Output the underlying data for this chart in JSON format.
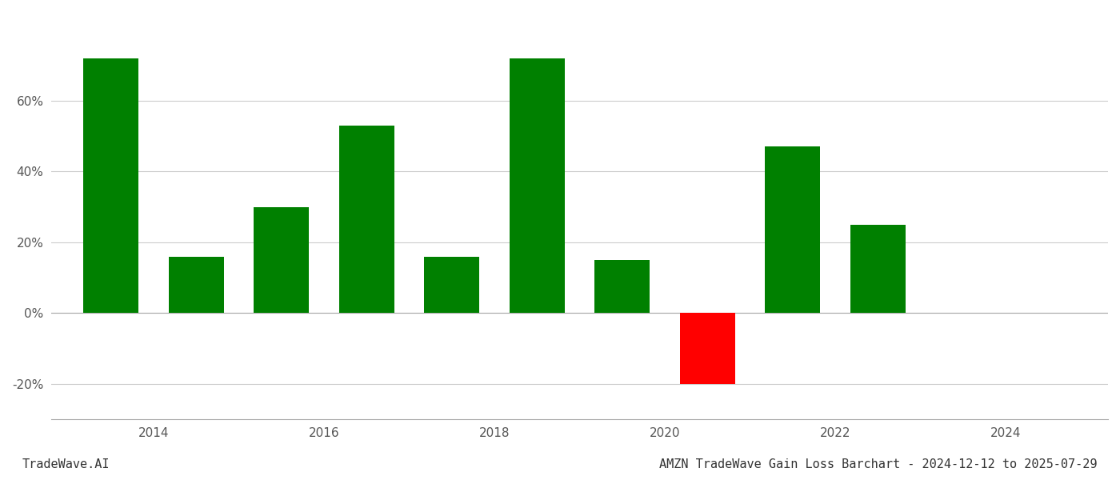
{
  "years": [
    2013.5,
    2014.5,
    2015.5,
    2016.5,
    2017.5,
    2018.5,
    2019.5,
    2020.5,
    2021.5,
    2022.5
  ],
  "values": [
    0.72,
    0.16,
    0.3,
    0.53,
    0.16,
    0.72,
    0.15,
    -0.2,
    0.47,
    0.25
  ],
  "colors": [
    "#008000",
    "#008000",
    "#008000",
    "#008000",
    "#008000",
    "#008000",
    "#008000",
    "#ff0000",
    "#008000",
    "#008000"
  ],
  "title": "AMZN TradeWave Gain Loss Barchart - 2024-12-12 to 2025-07-29",
  "watermark": "TradeWave.AI",
  "ylabel_ticks": [
    -0.2,
    0.0,
    0.2,
    0.4,
    0.6
  ],
  "ylim": [
    -0.3,
    0.85
  ],
  "bar_width": 0.65,
  "xlim": [
    2012.8,
    2025.2
  ],
  "xticks": [
    2014,
    2016,
    2018,
    2020,
    2022,
    2024
  ],
  "background_color": "#ffffff",
  "grid_color": "#cccccc",
  "title_fontsize": 11,
  "tick_fontsize": 11,
  "watermark_fontsize": 11
}
